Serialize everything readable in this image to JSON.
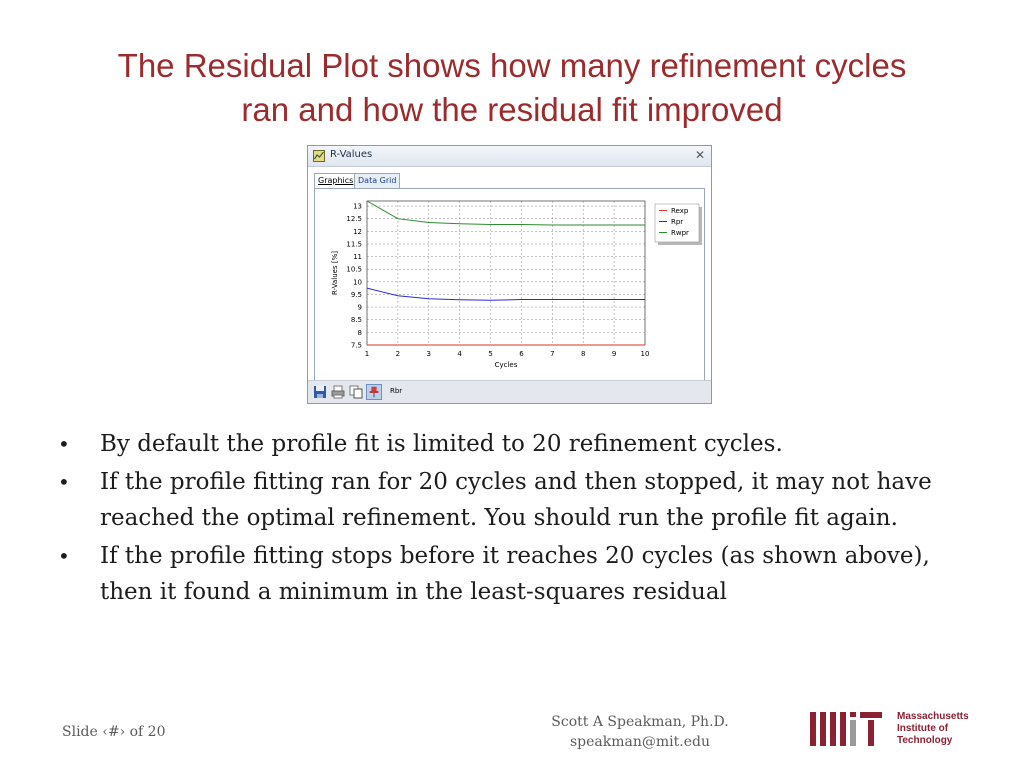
{
  "title": {
    "line1": "The Residual Plot shows how many refinement cycles",
    "line2": "ran and how the residual fit improved"
  },
  "window": {
    "title": "R-Values",
    "icon": "r-values-app-icon",
    "close_glyph": "✕",
    "tabs": [
      {
        "label": "Graphics",
        "active": true
      },
      {
        "label": "Data Grid",
        "active": false
      }
    ],
    "toolbar": {
      "icons": [
        "save-icon",
        "print-icon",
        "copy-icon",
        "pin-icon"
      ],
      "label": "Rbr"
    }
  },
  "chart_data": {
    "type": "line",
    "x": [
      1,
      2,
      3,
      4,
      5,
      6,
      7,
      8,
      9,
      10
    ],
    "xlabel": "Cycles",
    "ylabel": "R-Values [%]",
    "xlim": [
      1,
      10
    ],
    "ylim": [
      7.5,
      13.2
    ],
    "xticks": [
      "1",
      "2",
      "3",
      "4",
      "5",
      "6",
      "7",
      "8",
      "9",
      "10"
    ],
    "yticks": [
      "7.5",
      "8",
      "8.5",
      "9",
      "9.5",
      "10",
      "10.5",
      "11",
      "11.5",
      "12",
      "12.5",
      "13"
    ],
    "grid": true,
    "legend_position": "right",
    "series": [
      {
        "name": "Rexp",
        "color": "#d9302b",
        "values": [
          7.5,
          7.5,
          7.5,
          7.5,
          7.5,
          7.5,
          7.5,
          7.5,
          7.5,
          7.5
        ]
      },
      {
        "name": "Rpr",
        "color": "#2a2ad6",
        "values": [
          9.75,
          9.45,
          9.33,
          9.29,
          9.27,
          9.3,
          9.3,
          9.3,
          9.3,
          9.3
        ]
      },
      {
        "name": "Rwpr",
        "color": "#2f8a2f",
        "values": [
          13.2,
          12.5,
          12.35,
          12.3,
          12.27,
          12.27,
          12.25,
          12.25,
          12.25,
          12.25
        ]
      }
    ]
  },
  "bullets": [
    {
      "marker": "•",
      "text": "By default the profile fit is limited to 20 refinement cycles."
    },
    {
      "marker": "•",
      "text": "If the profile fitting ran for 20 cycles and then stopped, it may not have reached the optimal refinement.  You should run the profile fit again."
    },
    {
      "marker": "•",
      "text": "If the profile fitting stops before it reaches 20 cycles (as shown above), then it found a minimum in the least-squares residual"
    }
  ],
  "footer": {
    "slide_label": "Slide ‹#› of 20",
    "author_name": "Scott A Speakman, Ph.D.",
    "author_email": "speakman@mit.edu",
    "logo_lines": [
      "Massachusetts",
      "Institute of",
      "Technology"
    ],
    "logo_color": "#8b2231"
  }
}
